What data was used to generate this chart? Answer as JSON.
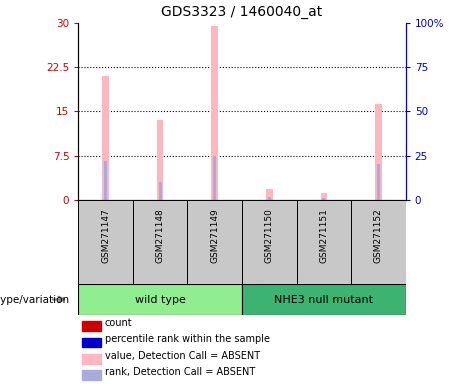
{
  "title": "GDS3323 / 1460040_at",
  "samples": [
    "GSM271147",
    "GSM271148",
    "GSM271149",
    "GSM271150",
    "GSM271151",
    "GSM271152"
  ],
  "groups": [
    {
      "name": "wild type",
      "color": "#90EE90",
      "indices": [
        0,
        1,
        2
      ]
    },
    {
      "name": "NHE3 null mutant",
      "color": "#3CB371",
      "indices": [
        3,
        4,
        5
      ]
    }
  ],
  "pink_bars": [
    21.0,
    13.5,
    29.5,
    1.8,
    1.1,
    16.2
  ],
  "blue_bars_rank": [
    22.0,
    10.0,
    25.0,
    1.5,
    0.8,
    20.0
  ],
  "ylim_left": [
    0,
    30
  ],
  "ylim_right": [
    0,
    100
  ],
  "yticks_left": [
    0,
    7.5,
    15,
    22.5,
    30
  ],
  "yticks_right": [
    0,
    25,
    50,
    75,
    100
  ],
  "ytick_labels_left": [
    "0",
    "7.5",
    "15",
    "22.5",
    "30"
  ],
  "ytick_labels_right": [
    "0",
    "25",
    "50",
    "75",
    "100%"
  ],
  "color_pink": "#FFB6C1",
  "color_light_blue": "#AAAADD",
  "color_red": "#CC0000",
  "color_blue": "#0000CC",
  "group_label": "genotype/variation",
  "legend_items": [
    {
      "label": "count",
      "color": "#CC0000"
    },
    {
      "label": "percentile rank within the sample",
      "color": "#0000CC"
    },
    {
      "label": "value, Detection Call = ABSENT",
      "color": "#FFB6C1"
    },
    {
      "label": "rank, Detection Call = ABSENT",
      "color": "#AAAADD"
    }
  ],
  "bg_color": "#FFFFFF",
  "sample_box_color": "#C8C8C8",
  "grid_dotted_levels": [
    7.5,
    15,
    22.5
  ]
}
